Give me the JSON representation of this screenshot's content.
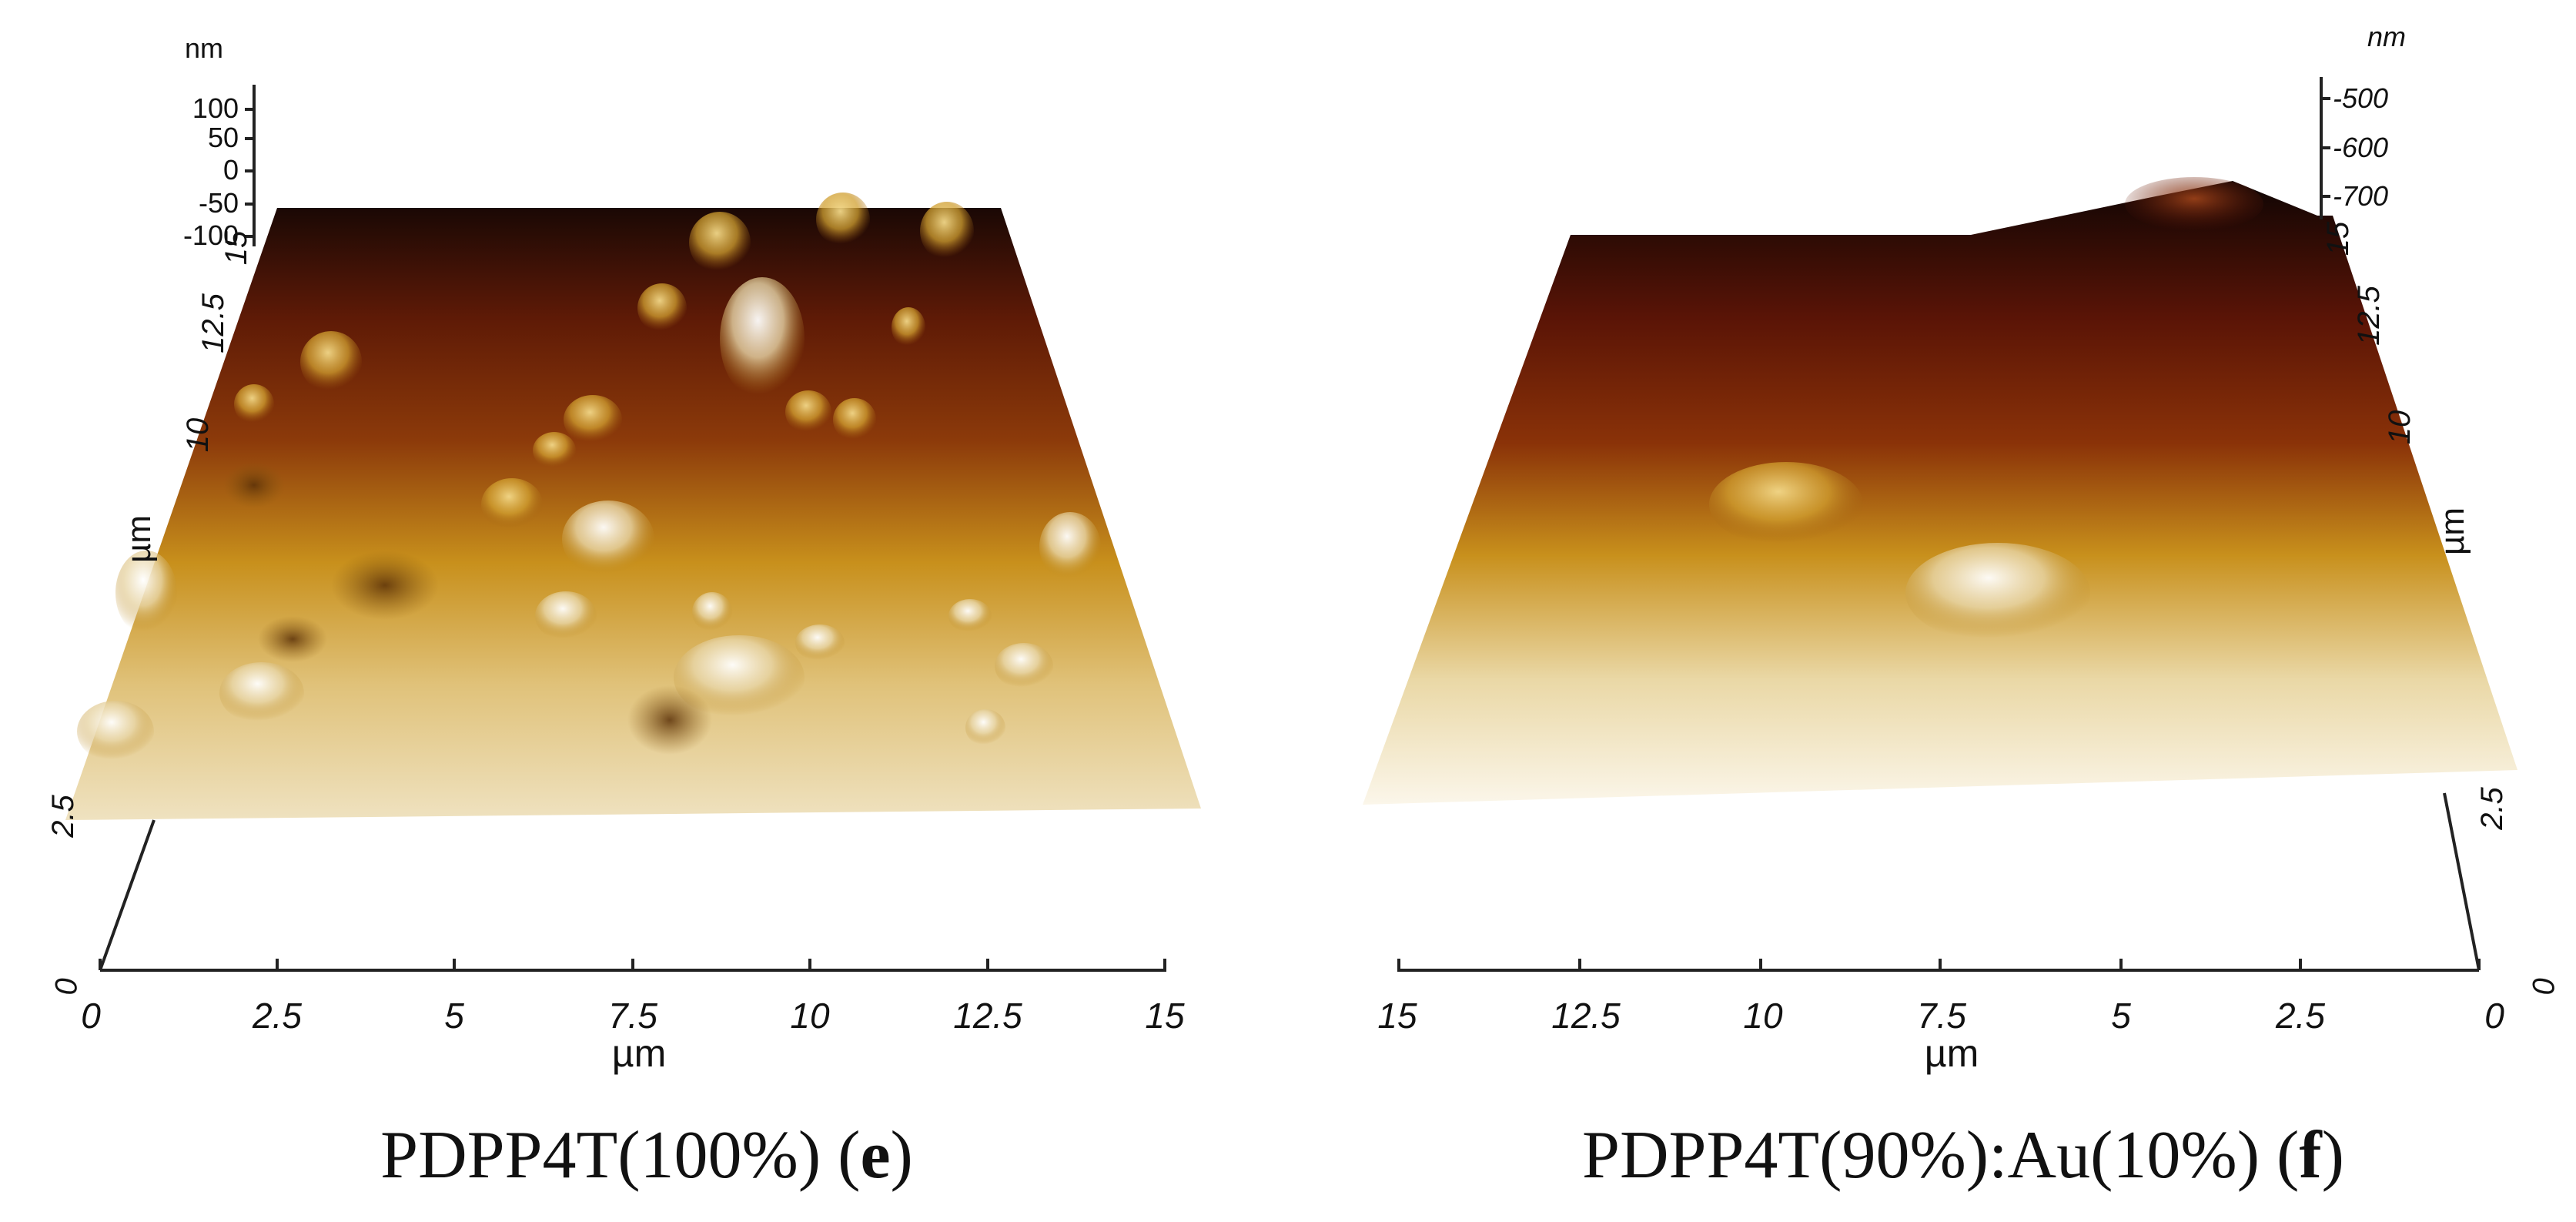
{
  "panels": [
    {
      "id": "e",
      "z_unit": "nm",
      "z_ticks": [
        "100",
        "50",
        "0",
        "-50",
        "-100"
      ],
      "x_ticks": [
        "0",
        "2.5",
        "5",
        "7.5",
        "10",
        "12.5",
        "15"
      ],
      "x_unit": "µm",
      "y_ticks": [
        "0",
        "2.5",
        "10",
        "12.5",
        "15"
      ],
      "y_unit": "µm",
      "caption_main": "PDPP4T(100%) (",
      "caption_letter": "e",
      "caption_close": ")"
    },
    {
      "id": "f",
      "z_unit": "nm",
      "z_ticks": [
        "-500",
        "-600",
        "-700"
      ],
      "x_ticks": [
        "15",
        "12.5",
        "10",
        "7.5",
        "5",
        "2.5",
        "0"
      ],
      "x_unit": "µm",
      "y_ticks": [
        "0",
        "2.5",
        "10",
        "12.5",
        "15"
      ],
      "y_unit": "µm",
      "caption_main": "PDPP4T(90%):Au(10%) (",
      "caption_letter": "f",
      "caption_close": ")"
    }
  ],
  "colors": {
    "surface_dark": "#1a0805",
    "surface_mid": "#7a2a08",
    "surface_gold": "#c8901c",
    "surface_light": "#f4ecd8",
    "axis": "#222222"
  }
}
